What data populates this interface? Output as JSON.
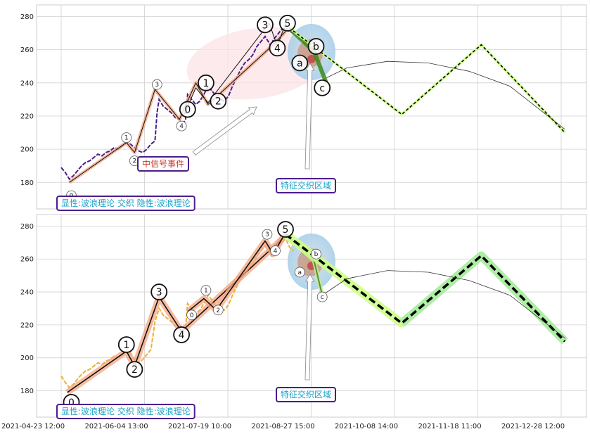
{
  "chart_data": {
    "type": "line",
    "x_ticks": [
      "2021-04-23 12:00",
      "2021-06-04 13:00",
      "2021-07-19 10:00",
      "2021-08-27 15:00",
      "2021-10-08 14:00",
      "2021-11-18 11:00",
      "2021-12-28 12:00"
    ],
    "y_ticks": [
      180,
      200,
      220,
      240,
      260,
      280
    ],
    "ylim": [
      164,
      287
    ],
    "colors": {
      "panel1_price": "#4b1d8a",
      "panel2_price": "#f0b030",
      "wave": "#111111",
      "wave_glow": "#f4a582",
      "forecast_green": "#3a8a1a",
      "forecast_light": "#ccff88",
      "badge_border": "#4b1d8a",
      "badge_text_blue": "#1aa0c8",
      "badge_text_red": "#c8362a"
    },
    "panel1": {
      "badge_bottom": "显性:波浪理论 交织 隐性:波浪理论",
      "badge_mid": "中信号事件",
      "badge_zone": "特征交织区域",
      "price": [
        [
          0,
          189
        ],
        [
          2,
          186
        ],
        [
          4,
          182
        ],
        [
          6,
          184
        ],
        [
          8,
          187
        ],
        [
          10,
          190
        ],
        [
          12,
          192
        ],
        [
          14,
          193
        ],
        [
          16,
          195
        ],
        [
          18,
          197
        ],
        [
          20,
          196
        ],
        [
          22,
          198
        ],
        [
          24,
          199
        ],
        [
          26,
          201
        ],
        [
          28,
          200
        ],
        [
          30,
          202
        ],
        [
          32,
          204
        ],
        [
          34,
          203
        ],
        [
          36,
          201
        ],
        [
          38,
          199
        ],
        [
          40,
          198
        ],
        [
          42,
          200
        ],
        [
          44,
          203
        ],
        [
          46,
          205
        ],
        [
          47,
          222
        ],
        [
          48,
          230
        ],
        [
          50,
          226
        ],
        [
          52,
          224
        ],
        [
          54,
          222
        ],
        [
          56,
          219
        ],
        [
          58,
          218
        ],
        [
          60,
          216
        ],
        [
          61,
          218
        ],
        [
          62,
          233
        ],
        [
          64,
          230
        ],
        [
          66,
          227
        ],
        [
          68,
          229
        ],
        [
          70,
          233
        ],
        [
          72,
          238
        ],
        [
          74,
          235
        ],
        [
          76,
          232
        ],
        [
          78,
          230
        ],
        [
          80,
          229
        ],
        [
          82,
          232
        ],
        [
          84,
          238
        ],
        [
          86,
          243
        ],
        [
          88,
          248
        ],
        [
          90,
          252
        ],
        [
          92,
          254
        ],
        [
          94,
          257
        ],
        [
          96,
          262
        ],
        [
          98,
          265
        ],
        [
          100,
          268
        ],
        [
          102,
          264
        ],
        [
          103,
          262
        ],
        [
          104,
          266
        ],
        [
          106,
          269
        ],
        [
          108,
          272
        ],
        [
          110,
          273
        ],
        [
          112,
          271
        ],
        [
          114,
          270
        ]
      ],
      "wave_lines": [
        {
          "points": [
            [
              4,
              180
            ],
            [
              32,
              204
            ],
            [
              36,
              198
            ],
            [
              46,
              236
            ],
            [
              58,
              218
            ],
            [
              66,
              240
            ],
            [
              72,
              227
            ],
            [
              104,
              263
            ],
            [
              110,
              271
            ]
          ],
          "glow": true
        },
        {
          "points": [
            [
              60,
              220
            ],
            [
              66,
              237
            ],
            [
              72,
              228
            ],
            [
              102,
              276
            ],
            [
              106,
              262
            ],
            [
              110,
              276
            ]
          ],
          "glow": false
        }
      ],
      "forecast": [
        [
          110,
          275
        ],
        [
          124,
          259
        ],
        [
          130,
          240
        ]
      ],
      "forecast_dashed": [
        [
          110,
          275
        ],
        [
          167,
          221
        ],
        [
          206,
          263
        ],
        [
          247,
          210
        ]
      ],
      "arc": [
        [
          130,
          243
        ],
        [
          140,
          249
        ],
        [
          160,
          253
        ],
        [
          180,
          252
        ],
        [
          200,
          247
        ],
        [
          220,
          238
        ],
        [
          247,
          212
        ]
      ],
      "small_labels": [
        {
          "text": "0",
          "x": 5,
          "y": 172
        },
        {
          "text": "1",
          "x": 32,
          "y": 207
        },
        {
          "text": "2",
          "x": 36,
          "y": 193
        },
        {
          "text": "3",
          "x": 47,
          "y": 239
        },
        {
          "text": "4",
          "x": 59,
          "y": 214
        }
      ],
      "big_labels": [
        {
          "text": "0",
          "x": 62,
          "y": 224
        },
        {
          "text": "1",
          "x": 71,
          "y": 240
        },
        {
          "text": "2",
          "x": 77,
          "y": 229
        },
        {
          "text": "3",
          "x": 100,
          "y": 275
        },
        {
          "text": "4",
          "x": 106,
          "y": 261
        },
        {
          "text": "5",
          "x": 111,
          "y": 276
        },
        {
          "text": "a",
          "x": 117,
          "y": 252
        },
        {
          "text": "b",
          "x": 125,
          "y": 262
        },
        {
          "text": "c",
          "x": 128,
          "y": 237
        }
      ]
    },
    "panel2": {
      "badge_bottom": "显性:波浪理论 交织 隐性:波浪理论",
      "badge_zone": "特征交织区域",
      "price": [
        [
          0,
          189
        ],
        [
          2,
          185
        ],
        [
          4,
          182
        ],
        [
          6,
          184
        ],
        [
          8,
          187
        ],
        [
          10,
          190
        ],
        [
          12,
          192
        ],
        [
          14,
          193
        ],
        [
          16,
          195
        ],
        [
          18,
          197
        ],
        [
          20,
          196
        ],
        [
          22,
          198
        ],
        [
          24,
          199
        ],
        [
          26,
          201
        ],
        [
          28,
          200
        ],
        [
          30,
          202
        ],
        [
          32,
          204
        ],
        [
          34,
          203
        ],
        [
          36,
          199
        ],
        [
          38,
          197
        ],
        [
          40,
          199
        ],
        [
          42,
          202
        ],
        [
          44,
          205
        ],
        [
          46,
          222
        ],
        [
          48,
          230
        ],
        [
          50,
          226
        ],
        [
          52,
          224
        ],
        [
          54,
          222
        ],
        [
          56,
          219
        ],
        [
          58,
          218
        ],
        [
          60,
          216
        ],
        [
          61,
          218
        ],
        [
          62,
          233
        ],
        [
          64,
          230
        ],
        [
          66,
          227
        ],
        [
          68,
          229
        ],
        [
          70,
          233
        ],
        [
          72,
          238
        ],
        [
          74,
          235
        ],
        [
          76,
          232
        ],
        [
          78,
          230
        ],
        [
          80,
          229
        ],
        [
          82,
          232
        ],
        [
          84,
          238
        ],
        [
          86,
          243
        ],
        [
          88,
          248
        ],
        [
          90,
          252
        ],
        [
          92,
          254
        ],
        [
          94,
          257
        ],
        [
          96,
          262
        ],
        [
          98,
          265
        ],
        [
          100,
          268
        ],
        [
          102,
          264
        ],
        [
          103,
          262
        ],
        [
          104,
          266
        ],
        [
          106,
          269
        ],
        [
          108,
          272
        ],
        [
          110,
          273
        ],
        [
          112,
          267
        ],
        [
          114,
          265
        ]
      ],
      "wave_lines": [
        {
          "points": [
            [
              3,
              179
            ],
            [
              32,
              204
            ],
            [
              36,
              195
            ],
            [
              48,
              237
            ],
            [
              59,
              216
            ],
            [
              110,
              274
            ]
          ],
          "glow": true
        },
        {
          "points": [
            [
              62,
              228
            ],
            [
              70,
              236
            ],
            [
              76,
              229
            ],
            [
              100,
              271
            ],
            [
              104,
              263
            ],
            [
              110,
              276
            ]
          ],
          "glow": true
        }
      ],
      "forecast": [
        [
          110,
          275
        ],
        [
          124,
          259
        ],
        [
          128,
          238
        ]
      ],
      "forecast_dashed": [
        [
          110,
          275
        ],
        [
          167,
          221
        ],
        [
          206,
          262
        ],
        [
          247,
          210
        ]
      ],
      "arc": [
        [
          128,
          238
        ],
        [
          140,
          248
        ],
        [
          160,
          253
        ],
        [
          180,
          252
        ],
        [
          200,
          247
        ],
        [
          220,
          238
        ],
        [
          247,
          212
        ]
      ],
      "small_labels": [
        {
          "text": "0",
          "x": 64,
          "y": 226
        },
        {
          "text": "1",
          "x": 71,
          "y": 241
        },
        {
          "text": "2",
          "x": 77,
          "y": 229
        },
        {
          "text": "3",
          "x": 101,
          "y": 275
        },
        {
          "text": "4",
          "x": 105,
          "y": 265
        },
        {
          "text": "a",
          "x": 117,
          "y": 252
        },
        {
          "text": "b",
          "x": 125,
          "y": 263
        },
        {
          "text": "c",
          "x": 128,
          "y": 237
        }
      ],
      "big_labels": [
        {
          "text": "0",
          "x": 5,
          "y": 173
        },
        {
          "text": "1",
          "x": 32,
          "y": 208
        },
        {
          "text": "2",
          "x": 36,
          "y": 193
        },
        {
          "text": "3",
          "x": 48,
          "y": 240
        },
        {
          "text": "4",
          "x": 59,
          "y": 214
        },
        {
          "text": "5",
          "x": 110,
          "y": 278
        }
      ]
    }
  }
}
